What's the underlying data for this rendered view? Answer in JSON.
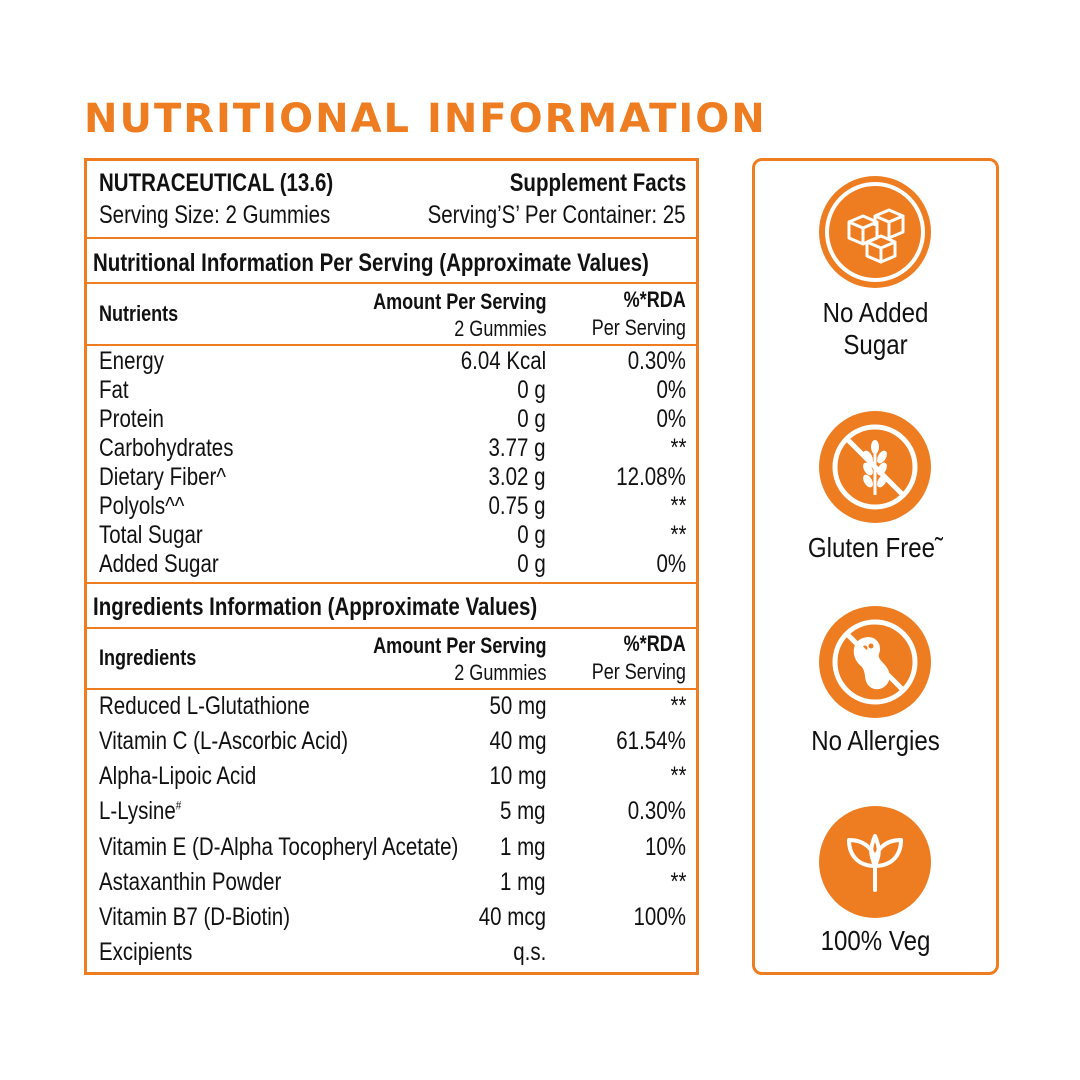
{
  "title": "NUTRITIONAL INFORMATION",
  "header": {
    "product": "NUTRACEUTICAL (13.6)",
    "serving_size": "Serving Size: 2 Gummies",
    "facts_title": "Supplement Facts",
    "servings_per_container": "Serving’S’ Per Container: 25"
  },
  "nutrition": {
    "section_title": "Nutritional Information Per Serving (Approximate Values)",
    "col_name": "Nutrients",
    "col_amount": "Amount Per Serving",
    "col_amount_sub": "2 Gummies",
    "col_rda": "%*RDA",
    "col_rda_sub": "Per Serving",
    "rows": [
      {
        "name": "Energy",
        "amount": "6.04 Kcal",
        "rda": "0.30%"
      },
      {
        "name": "Fat",
        "amount": "0 g",
        "rda": "0%"
      },
      {
        "name": "Protein",
        "amount": "0 g",
        "rda": "0%"
      },
      {
        "name": "Carbohydrates",
        "amount": "3.77 g",
        "rda": "**"
      },
      {
        "name": "Dietary Fiber^",
        "amount": "3.02 g",
        "rda": "12.08%"
      },
      {
        "name": "Polyols^^",
        "amount": "0.75 g",
        "rda": "**"
      },
      {
        "name": "Total Sugar",
        "amount": "0 g",
        "rda": "**"
      },
      {
        "name": "Added Sugar",
        "amount": "0 g",
        "rda": "0%"
      }
    ]
  },
  "ingredients": {
    "section_title": "Ingredients Information (Approximate Values)",
    "col_name": "Ingredients",
    "col_amount": "Amount Per Serving",
    "col_amount_sub": "2 Gummies",
    "col_rda": "%*RDA",
    "col_rda_sub": "Per Serving",
    "rows": [
      {
        "name": "Reduced  L-Glutathione",
        "amount": "50 mg",
        "rda": "**"
      },
      {
        "name": "Vitamin C (L-Ascorbic Acid)",
        "amount": "40 mg",
        "rda": "61.54%"
      },
      {
        "name": "Alpha-Lipoic Acid",
        "amount": "10 mg",
        "rda": "**"
      },
      {
        "name": "L-Lysine",
        "sup": "#",
        "amount": "5 mg",
        "rda": "0.30%"
      },
      {
        "name": "Vitamin E (D-Alpha Tocopheryl Acetate)",
        "amount": "1 mg",
        "rda": "10%"
      },
      {
        "name": "Astaxanthin Powder",
        "amount": "1 mg",
        "rda": "**"
      },
      {
        "name": "Vitamin B7 (D-Biotin)",
        "amount": "40 mcg",
        "rda": "100%"
      },
      {
        "name": "Excipients",
        "amount": "q.s.",
        "rda": ""
      }
    ]
  },
  "badges": [
    {
      "icon": "sugar-cubes-icon",
      "label_line1": "No Added",
      "label_line2": "Sugar"
    },
    {
      "icon": "wheat-crossed-icon",
      "label_line1": "Gluten Free˜",
      "label_line2": ""
    },
    {
      "icon": "peanut-crossed-icon",
      "label_line1": "No Allergies",
      "label_line2": ""
    },
    {
      "icon": "leaf-sprout-icon",
      "label_line1": "100% Veg",
      "label_line2": ""
    }
  ],
  "colors": {
    "accent": "#ee7d22",
    "text": "#111111",
    "background": "#ffffff"
  }
}
